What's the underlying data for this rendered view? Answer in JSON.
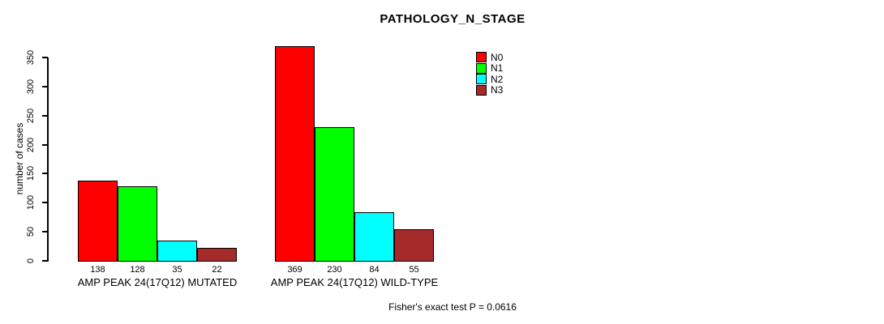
{
  "title": "PATHOLOGY_N_STAGE",
  "chart_data": {
    "type": "bar",
    "title": "PATHOLOGY_N_STAGE",
    "xlabel": "",
    "ylabel": "number of cases",
    "ylim": [
      0,
      350
    ],
    "yticks": [
      0,
      50,
      100,
      150,
      200,
      250,
      300,
      350
    ],
    "grid": false,
    "legend_position": "top-right",
    "categories": [
      "AMP PEAK 24(17Q12) MUTATED",
      "AMP PEAK 24(17Q12) WILD-TYPE"
    ],
    "series": [
      {
        "name": "N0",
        "color": "#ff0000",
        "values": [
          138,
          369
        ]
      },
      {
        "name": "N1",
        "color": "#00ff00",
        "values": [
          128,
          230
        ]
      },
      {
        "name": "N2",
        "color": "#00ffff",
        "values": [
          35,
          84
        ]
      },
      {
        "name": "N3",
        "color": "#a52a2a",
        "values": [
          22,
          55
        ]
      }
    ],
    "bar_value_labels": [
      [
        138,
        128,
        35,
        22
      ],
      [
        369,
        230,
        84,
        55
      ]
    ],
    "annotation": "Fisher's exact test P = 0.0616"
  }
}
